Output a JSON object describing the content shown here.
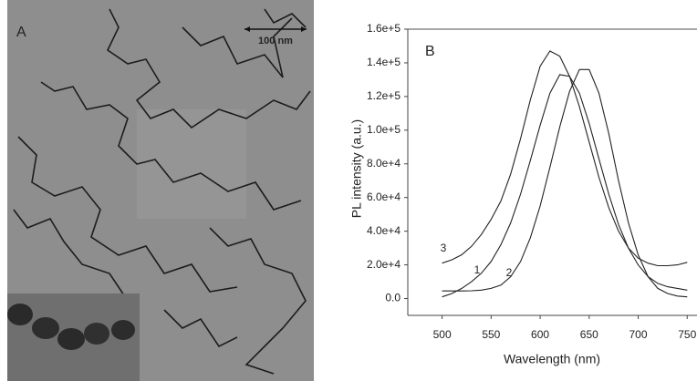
{
  "panel_a": {
    "label": "A",
    "scale_bar": "100 nm"
  },
  "chart_data": {
    "type": "line",
    "panel_label": "B",
    "x_label": "Wavelength (nm)",
    "y_label": "PL intensity (a.u.)",
    "x": [
      500,
      510,
      520,
      530,
      540,
      550,
      560,
      570,
      580,
      590,
      600,
      610,
      620,
      630,
      640,
      650,
      660,
      670,
      680,
      690,
      700,
      710,
      720,
      730,
      740,
      750
    ],
    "series": [
      {
        "name": "1",
        "color": "#222222",
        "values": [
          1000,
          3000,
          6000,
          10000,
          15000,
          22000,
          32000,
          45000,
          62000,
          82000,
          103000,
          122000,
          133000,
          132000,
          122000,
          104000,
          83000,
          62000,
          44000,
          30000,
          20000,
          13000,
          9000,
          7000,
          6000,
          5000
        ]
      },
      {
        "name": "2",
        "color": "#222222",
        "values": [
          4500,
          4500,
          4500,
          4600,
          5000,
          6000,
          8000,
          13000,
          22000,
          36000,
          55000,
          78000,
          102000,
          123000,
          136000,
          136000,
          122000,
          98000,
          70000,
          45000,
          26000,
          13000,
          6000,
          3000,
          1500,
          1000
        ]
      },
      {
        "name": "3",
        "color": "#222222",
        "values": [
          21000,
          23000,
          26000,
          31000,
          38000,
          47000,
          58000,
          74000,
          95000,
          118000,
          138000,
          147000,
          144000,
          132000,
          114000,
          93000,
          72000,
          54000,
          40000,
          30000,
          24000,
          21000,
          19500,
          19500,
          20000,
          21500
        ]
      }
    ],
    "xlim": [
      465,
      760
    ],
    "ylim": [
      -10000,
      160000
    ],
    "xticks": [
      500,
      550,
      600,
      650,
      700,
      750
    ],
    "yticks": [
      {
        "value": 0,
        "label": "0.0"
      },
      {
        "value": 20000,
        "label": "2.0e+4"
      },
      {
        "value": 40000,
        "label": "4.0e+4"
      },
      {
        "value": 60000,
        "label": "6.0e+4"
      },
      {
        "value": 80000,
        "label": "8.0e+4"
      },
      {
        "value": 100000,
        "label": "1.0e+5"
      },
      {
        "value": 120000,
        "label": "1.2e+5"
      },
      {
        "value": 140000,
        "label": "1.4e+5"
      },
      {
        "value": 160000,
        "label": "1.6e+5"
      }
    ]
  }
}
